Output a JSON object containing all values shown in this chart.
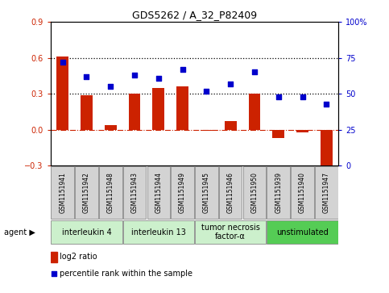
{
  "title": "GDS5262 / A_32_P82409",
  "samples": [
    "GSM1151941",
    "GSM1151942",
    "GSM1151948",
    "GSM1151943",
    "GSM1151944",
    "GSM1151949",
    "GSM1151945",
    "GSM1151946",
    "GSM1151950",
    "GSM1151939",
    "GSM1151940",
    "GSM1151947"
  ],
  "log2_ratio": [
    0.61,
    0.285,
    0.04,
    0.3,
    0.35,
    0.36,
    -0.01,
    0.07,
    0.3,
    -0.07,
    -0.02,
    -0.32
  ],
  "percentile_rank": [
    72,
    62,
    55,
    63,
    61,
    67,
    52,
    57,
    65,
    48,
    48,
    43
  ],
  "agents": [
    {
      "label": "interleukin 4",
      "start": 0,
      "end": 3,
      "color": "#c8f0c8"
    },
    {
      "label": "interleukin 13",
      "start": 3,
      "end": 6,
      "color": "#c8f0c8"
    },
    {
      "label": "tumor necrosis\nfactor-α",
      "start": 6,
      "end": 9,
      "color": "#c8f0c8"
    },
    {
      "label": "unstimulated",
      "start": 9,
      "end": 12,
      "color": "#5cd65c"
    }
  ],
  "ylim_left": [
    -0.3,
    0.9
  ],
  "ylim_right": [
    0,
    100
  ],
  "yticks_left": [
    -0.3,
    0.0,
    0.3,
    0.6,
    0.9
  ],
  "yticks_right": [
    0,
    25,
    50,
    75,
    100
  ],
  "ytick_right_labels": [
    "0",
    "25",
    "50",
    "75",
    "100%"
  ],
  "hlines": [
    0.3,
    0.6
  ],
  "bar_color": "#cc2200",
  "dot_color": "#0000cc",
  "bg_color": "#ffffff",
  "plot_bg": "#ffffff",
  "sample_box_color": "#d3d3d3",
  "agent_light_color": "#ccf0cc",
  "agent_dark_color": "#55cc55"
}
